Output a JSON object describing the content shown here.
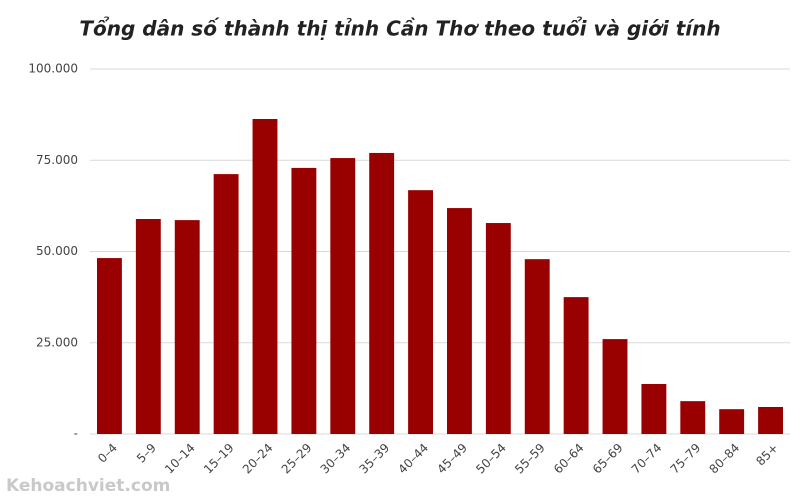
{
  "chart_data": {
    "type": "bar",
    "title": "Tổng dân số thành thị tỉnh Cần Thơ theo tuổi và giới tính",
    "categories": [
      "0–4",
      "5–9",
      "10–14",
      "15–19",
      "20–24",
      "25–29",
      "30–34",
      "35–39",
      "40–44",
      "45–49",
      "50–54",
      "55–59",
      "60–64",
      "65–69",
      "70–74",
      "75–79",
      "80–84",
      "85+"
    ],
    "values": [
      48200,
      58900,
      58600,
      71200,
      86300,
      72900,
      75600,
      77000,
      66800,
      61900,
      57800,
      47900,
      37500,
      26000,
      13700,
      9000,
      6800,
      7400
    ],
    "color": "#990000",
    "ylim": [
      0,
      100000
    ],
    "yticks": [
      {
        "value": 0,
        "label": "-"
      },
      {
        "value": 25000,
        "label": "25.000"
      },
      {
        "value": 50000,
        "label": "50.000"
      },
      {
        "value": 75000,
        "label": "75.000"
      },
      {
        "value": 100000,
        "label": "100.000"
      }
    ],
    "grid": true,
    "watermark": "Kehoachviet.com"
  }
}
